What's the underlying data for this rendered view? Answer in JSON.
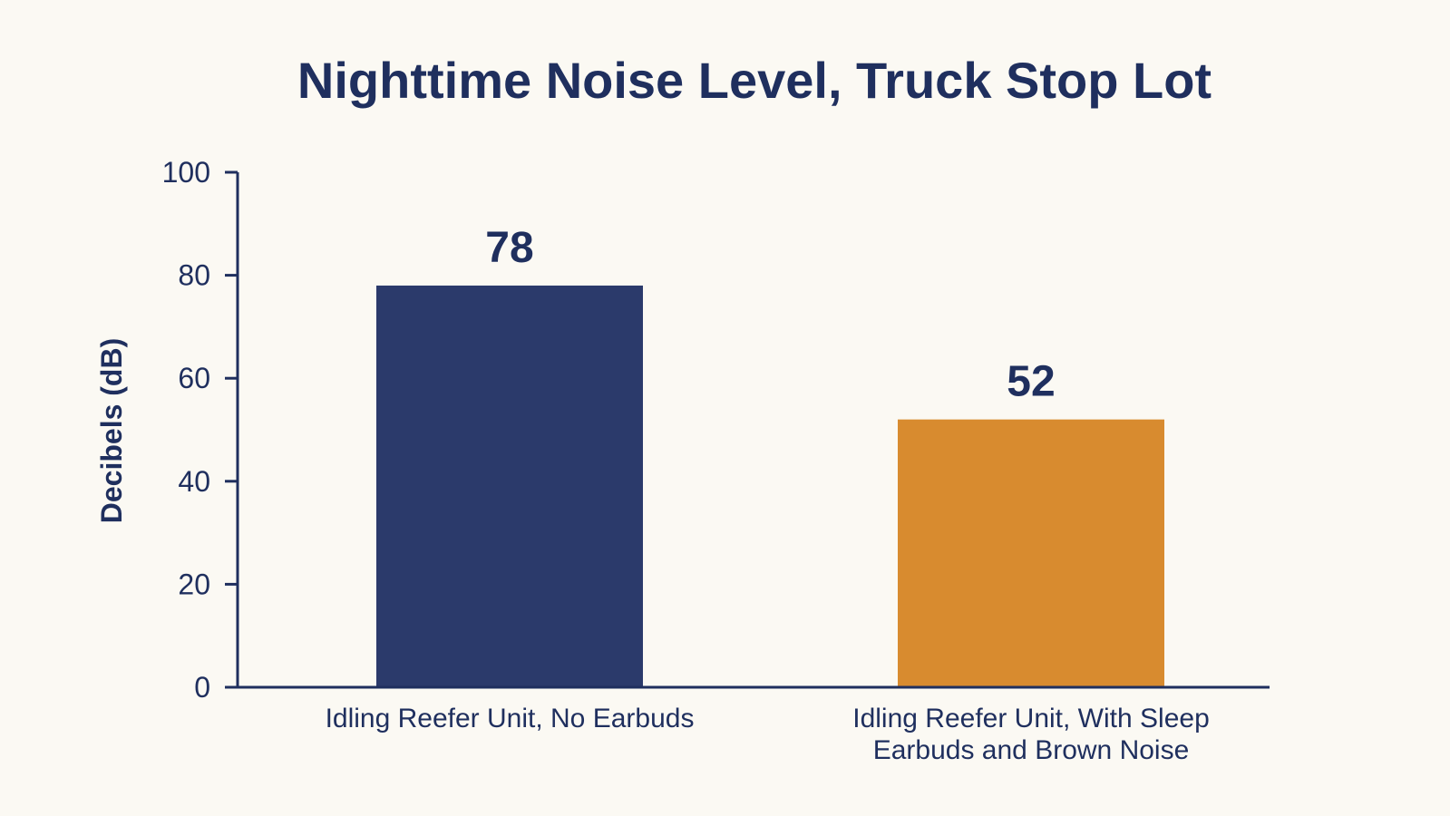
{
  "chart_data": {
    "type": "bar",
    "title": "Nighttime Noise Level, Truck Stop Lot",
    "ylabel": "Decibels (dB)",
    "xlabel": "",
    "ylim": [
      0,
      100
    ],
    "yticks": [
      0,
      20,
      40,
      60,
      80,
      100
    ],
    "grid": false,
    "categories": [
      [
        "Idling Reefer Unit, No Earbuds"
      ],
      [
        "Idling Reefer Unit, With Sleep",
        "Earbuds and Brown Noise"
      ]
    ],
    "values": [
      78,
      52
    ],
    "data_labels": [
      "78",
      "52"
    ],
    "colors": [
      "#2b3a6b",
      "#d88b2f"
    ],
    "axis_color": "#1f2f5e"
  }
}
